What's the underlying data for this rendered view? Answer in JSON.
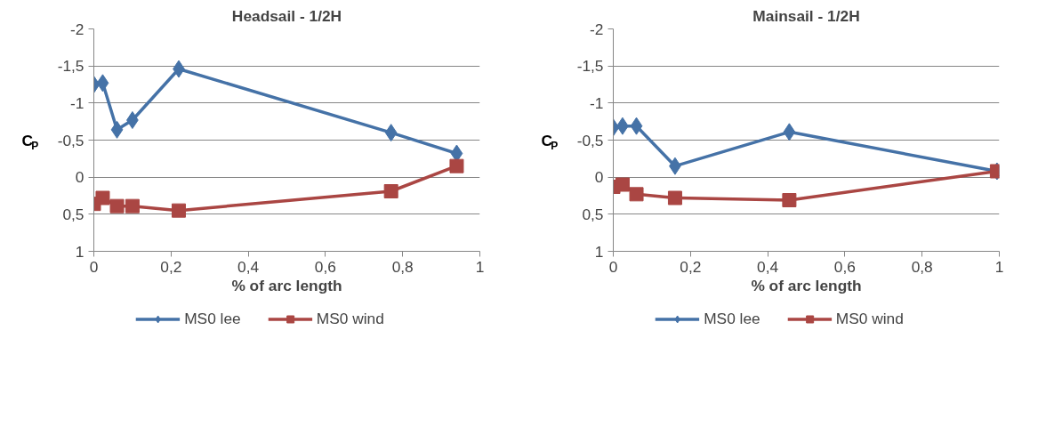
{
  "chart_data": [
    {
      "type": "line",
      "title": "Headsail - 1/2H",
      "xlabel": "% of arc length",
      "ylabel": "C$_{P}$",
      "xlim": [
        0,
        1
      ],
      "xticks": [
        0,
        {
          "value": 0.2,
          "label": "0,2"
        },
        {
          "value": 0.4,
          "label": "0,4"
        },
        {
          "value": 0.6,
          "label": "0,6"
        },
        {
          "value": 0.8,
          "label": "0,8"
        },
        1
      ],
      "ylim": [
        1,
        -2
      ],
      "yticks": [
        -2,
        {
          "value": -1.5,
          "label": "-1,5"
        },
        -1,
        {
          "value": -0.5,
          "label": "-0,5"
        },
        0,
        {
          "value": 0.5,
          "label": "0,5"
        },
        1
      ],
      "grid": "y",
      "legend": "bottom",
      "series": [
        {
          "name": "MS0 lee",
          "color": "#4572a7",
          "marker": "diamond",
          "x": [
            0,
            0.023,
            0.06,
            0.1,
            0.22,
            0.77,
            0.94
          ],
          "values": [
            -1.25,
            -1.27,
            -0.64,
            -0.77,
            -1.46,
            -0.6,
            -0.32
          ]
        },
        {
          "name": "MS0 wind",
          "color": "#aa4643",
          "marker": "square",
          "x": [
            0,
            0.023,
            0.06,
            0.1,
            0.22,
            0.77,
            0.94
          ],
          "values": [
            0.36,
            0.28,
            0.39,
            0.39,
            0.45,
            0.19,
            -0.15
          ]
        }
      ]
    },
    {
      "type": "line",
      "title": "Mainsail - 1/2H",
      "xlabel": "% of arc length",
      "ylabel": "C$_{P}$",
      "xlim": [
        0,
        1
      ],
      "xticks": [
        0,
        {
          "value": 0.2,
          "label": "0,2"
        },
        {
          "value": 0.4,
          "label": "0,4"
        },
        {
          "value": 0.6,
          "label": "0,6"
        },
        {
          "value": 0.8,
          "label": "0,8"
        },
        1
      ],
      "ylim": [
        1,
        -2
      ],
      "yticks": [
        -2,
        {
          "value": -1.5,
          "label": "-1,5"
        },
        -1,
        {
          "value": -0.5,
          "label": "-0,5"
        },
        0,
        {
          "value": 0.5,
          "label": "0,5"
        },
        1
      ],
      "grid": "y",
      "legend": "bottom",
      "series": [
        {
          "name": "MS0 lee",
          "color": "#4572a7",
          "marker": "diamond",
          "x": [
            0,
            0.024,
            0.06,
            0.16,
            0.456,
            0.994
          ],
          "values": [
            -0.67,
            -0.69,
            -0.69,
            -0.15,
            -0.61,
            -0.08
          ]
        },
        {
          "name": "MS0 wind",
          "color": "#aa4643",
          "marker": "square",
          "x": [
            0,
            0.024,
            0.06,
            0.16,
            0.456,
            0.994
          ],
          "values": [
            0.13,
            0.1,
            0.23,
            0.28,
            0.31,
            -0.08
          ]
        }
      ]
    }
  ]
}
